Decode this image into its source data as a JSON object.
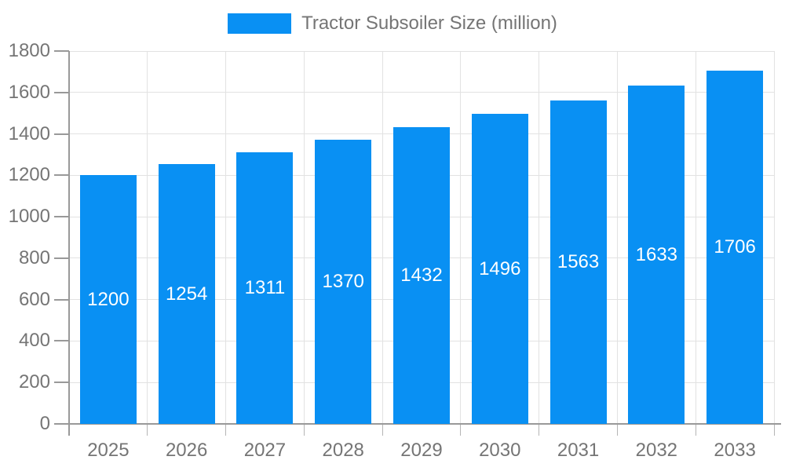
{
  "legend": {
    "label": "Tractor Subsoiler Size (million)"
  },
  "chart_data": {
    "type": "bar",
    "title": "Tractor Subsoiler Size (million)",
    "categories": [
      "2025",
      "2026",
      "2027",
      "2028",
      "2029",
      "2030",
      "2031",
      "2032",
      "2033"
    ],
    "values": [
      1200,
      1254,
      1311,
      1370,
      1432,
      1496,
      1563,
      1633,
      1706
    ],
    "xlabel": "",
    "ylabel": "",
    "ylim": [
      0,
      1800
    ],
    "ytick_step": 200,
    "grid": true,
    "legend_position": "top-center",
    "value_labels": "inside-middle",
    "colors": {
      "bar": "#0990F3",
      "value_label": "#ffffff",
      "axis": "#999999",
      "tick": "#b5b5b5",
      "grid": "#e2e2e2",
      "text": "#757575",
      "background": "#ffffff"
    }
  }
}
